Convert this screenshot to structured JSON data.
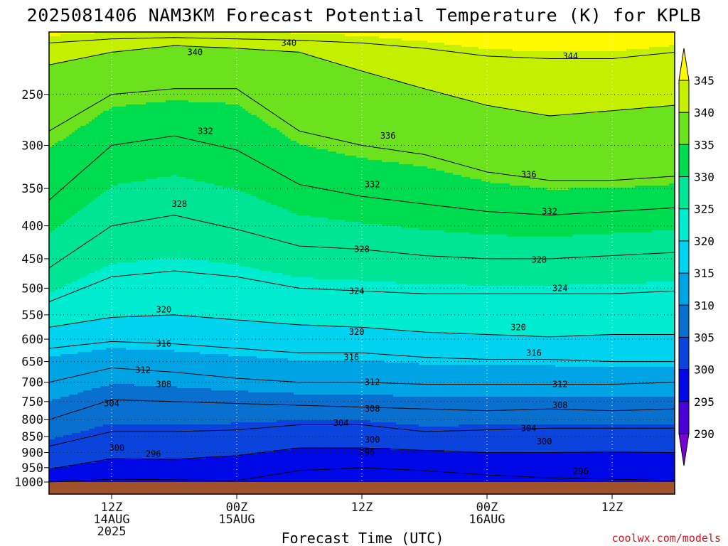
{
  "title": "2025081406 NAM3KM Forecast Potential Temperature (K) for KPLB",
  "x_axis_label": "Forecast Time (UTC)",
  "credit": "coolwx.com/models",
  "chart_data": {
    "type": "heatmap",
    "title": "2025081406 NAM3KM Forecast Potential Temperature (K) for KPLB",
    "xlabel": "Forecast Time (UTC)",
    "ylabel": "",
    "x_range_hours": [
      0,
      60
    ],
    "y_range_hPa": [
      1000,
      200
    ],
    "y_scale": "log",
    "y_ticks": [
      250,
      300,
      350,
      400,
      450,
      500,
      550,
      600,
      650,
      700,
      750,
      800,
      850,
      900,
      950,
      1000
    ],
    "x_ticks": [
      {
        "hour": 6,
        "lines": [
          "12Z",
          "14AUG",
          "2025"
        ]
      },
      {
        "hour": 18,
        "lines": [
          "00Z",
          "15AUG"
        ]
      },
      {
        "hour": 30,
        "lines": [
          "12Z",
          ""
        ]
      },
      {
        "hour": 42,
        "lines": [
          "00Z",
          "16AUG"
        ]
      },
      {
        "hour": 54,
        "lines": [
          "12Z",
          ""
        ]
      }
    ],
    "grid": "dotted",
    "colorbar": {
      "levels": [
        290,
        295,
        300,
        305,
        310,
        315,
        320,
        325,
        330,
        335,
        340,
        345
      ],
      "labels": [
        "345",
        "340",
        "335",
        "330",
        "325",
        "320",
        "315",
        "310",
        "305",
        "300",
        "295",
        "290"
      ],
      "colors": [
        "#7a00d8",
        "#4b00d8",
        "#0008e8",
        "#0a44dc",
        "#0a70d0",
        "#00a4e4",
        "#00d2f0",
        "#00ecd0",
        "#00e496",
        "#00dc50",
        "#6ce21e",
        "#c4f000",
        "#fffa00"
      ]
    },
    "hours": [
      0,
      6,
      12,
      18,
      24,
      30,
      36,
      42,
      48,
      54,
      60
    ],
    "isentropes": [
      {
        "value": 296,
        "pressure": [
          1000,
          990,
          992,
          995,
          960,
          950,
          960,
          975,
          985,
          990,
          995
        ]
      },
      {
        "value": 300,
        "pressure": [
          955,
          920,
          922,
          910,
          885,
          885,
          893,
          900,
          900,
          898,
          900
        ]
      },
      {
        "value": 304,
        "pressure": [
          880,
          835,
          835,
          830,
          815,
          815,
          835,
          830,
          825,
          825,
          825
        ]
      },
      {
        "value": 308,
        "pressure": [
          800,
          745,
          750,
          755,
          760,
          765,
          770,
          775,
          770,
          775,
          770
        ]
      },
      {
        "value": 312,
        "pressure": [
          700,
          665,
          675,
          690,
          700,
          700,
          705,
          705,
          705,
          705,
          700
        ]
      },
      {
        "value": 316,
        "pressure": [
          620,
          605,
          610,
          620,
          630,
          630,
          640,
          645,
          645,
          650,
          650
        ]
      },
      {
        "value": 320,
        "pressure": [
          575,
          555,
          550,
          560,
          570,
          575,
          585,
          590,
          595,
          590,
          590
        ]
      },
      {
        "value": 324,
        "pressure": [
          525,
          480,
          470,
          480,
          500,
          505,
          510,
          510,
          510,
          510,
          505
        ]
      },
      {
        "value": 328,
        "pressure": [
          465,
          400,
          385,
          405,
          430,
          435,
          445,
          450,
          450,
          445,
          440
        ]
      },
      {
        "value": 332,
        "pressure": [
          365,
          300,
          290,
          305,
          345,
          360,
          370,
          380,
          385,
          380,
          375
        ]
      },
      {
        "value": 336,
        "pressure": [
          285,
          250,
          245,
          245,
          285,
          300,
          310,
          330,
          340,
          340,
          335
        ]
      },
      {
        "value": 340,
        "pressure": [
          225,
          215,
          210,
          212,
          215,
          230,
          245,
          260,
          270,
          265,
          260
        ]
      },
      {
        "value": 344,
        "pressure": [
          208,
          205,
          204,
          205,
          206,
          208,
          212,
          218,
          220,
          220,
          215
        ]
      }
    ],
    "contour_labels": [
      {
        "value": 340,
        "hour": 14,
        "pressure": 215
      },
      {
        "value": 340,
        "hour": 23,
        "pressure": 208
      },
      {
        "value": 344,
        "hour": 50,
        "pressure": 218
      },
      {
        "value": 332,
        "hour": 15,
        "pressure": 285
      },
      {
        "value": 336,
        "hour": 32.5,
        "pressure": 290
      },
      {
        "value": 336,
        "hour": 46,
        "pressure": 333
      },
      {
        "value": 328,
        "hour": 12.5,
        "pressure": 370
      },
      {
        "value": 332,
        "hour": 31,
        "pressure": 345
      },
      {
        "value": 332,
        "hour": 48,
        "pressure": 380
      },
      {
        "value": 328,
        "hour": 30,
        "pressure": 435
      },
      {
        "value": 328,
        "hour": 47,
        "pressure": 452
      },
      {
        "value": 320,
        "hour": 11,
        "pressure": 540
      },
      {
        "value": 324,
        "hour": 29.5,
        "pressure": 505
      },
      {
        "value": 324,
        "hour": 49,
        "pressure": 500
      },
      {
        "value": 320,
        "hour": 29.5,
        "pressure": 585
      },
      {
        "value": 320,
        "hour": 45,
        "pressure": 575
      },
      {
        "value": 316,
        "hour": 11,
        "pressure": 610
      },
      {
        "value": 316,
        "hour": 29,
        "pressure": 640
      },
      {
        "value": 316,
        "hour": 46.5,
        "pressure": 630
      },
      {
        "value": 312,
        "hour": 9,
        "pressure": 670
      },
      {
        "value": 312,
        "hour": 31,
        "pressure": 700
      },
      {
        "value": 312,
        "hour": 49,
        "pressure": 705
      },
      {
        "value": 308,
        "hour": 11,
        "pressure": 705
      },
      {
        "value": 308,
        "hour": 31,
        "pressure": 770
      },
      {
        "value": 308,
        "hour": 49,
        "pressure": 760
      },
      {
        "value": 304,
        "hour": 6,
        "pressure": 755
      },
      {
        "value": 304,
        "hour": 28,
        "pressure": 810
      },
      {
        "value": 304,
        "hour": 46,
        "pressure": 825
      },
      {
        "value": 300,
        "hour": 6.5,
        "pressure": 885
      },
      {
        "value": 300,
        "hour": 31,
        "pressure": 860
      },
      {
        "value": 300,
        "hour": 47.5,
        "pressure": 865
      },
      {
        "value": 296,
        "hour": 10,
        "pressure": 905
      },
      {
        "value": 296,
        "hour": 30.5,
        "pressure": 900
      },
      {
        "value": 296,
        "hour": 51,
        "pressure": 962
      }
    ]
  }
}
